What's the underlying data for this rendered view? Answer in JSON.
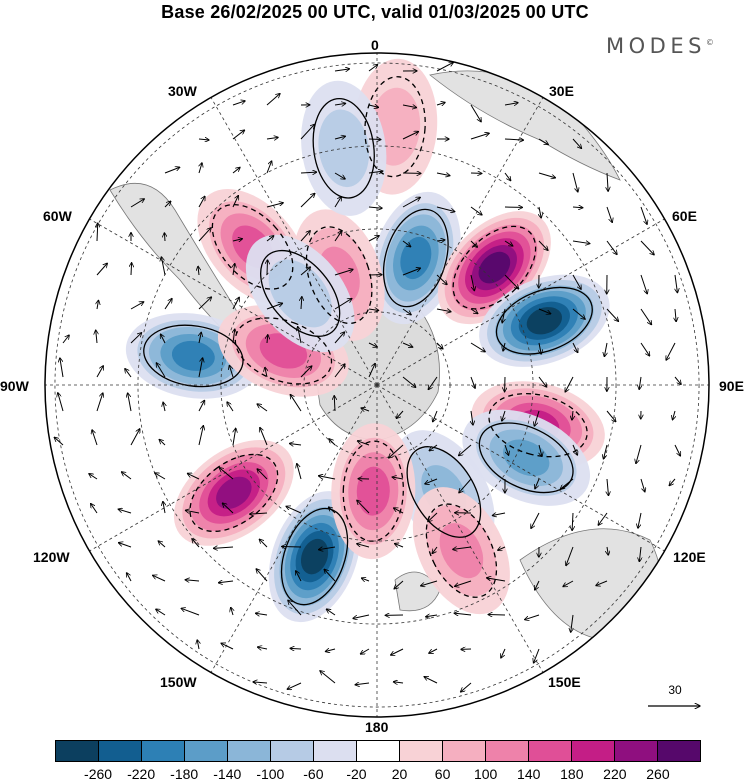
{
  "title": "Base 26/02/2025 00 UTC, valid 01/03/2025 00 UTC",
  "brand": "MODES",
  "brand_mark": "©",
  "map": {
    "projection": "south-polar-stereographic",
    "longitude_labels": {
      "lon_0": "0",
      "lon_30e": "30E",
      "lon_60e": "60E",
      "lon_90e": "90E",
      "lon_120e": "120E",
      "lon_150e": "150E",
      "lon_180": "180",
      "lon_150w": "150W",
      "lon_120w": "120W",
      "lon_90w": "90W",
      "lon_60w": "60W",
      "lon_30w": "30W"
    },
    "wind_reference_vector": "30",
    "anomaly_centers": [
      {
        "sign": "negative",
        "bearing_deg": 17,
        "r": 0.4,
        "peak": -200
      },
      {
        "sign": "positive",
        "bearing_deg": 45,
        "r": 0.5,
        "peak": 260
      },
      {
        "sign": "negative",
        "bearing_deg": 69,
        "r": 0.54,
        "peak": -260
      },
      {
        "sign": "positive",
        "bearing_deg": 104,
        "r": 0.5,
        "peak": 200
      },
      {
        "sign": "negative",
        "bearing_deg": 148,
        "r": 0.38,
        "peak": -120
      },
      {
        "sign": "negative",
        "bearing_deg": 116,
        "r": 0.5,
        "peak": -140
      },
      {
        "sign": "positive",
        "bearing_deg": 153,
        "r": 0.56,
        "peak": 120
      },
      {
        "sign": "negative",
        "bearing_deg": 200,
        "r": 0.55,
        "peak": -260
      },
      {
        "sign": "positive",
        "bearing_deg": 233,
        "r": 0.54,
        "peak": 240
      },
      {
        "sign": "negative",
        "bearing_deg": 279,
        "r": 0.56,
        "peak": -200
      },
      {
        "sign": "positive",
        "bearing_deg": 290,
        "r": 0.3,
        "peak": 140
      },
      {
        "sign": "positive",
        "bearing_deg": 318,
        "r": 0.56,
        "peak": 160
      },
      {
        "sign": "positive",
        "bearing_deg": 341,
        "r": 0.35,
        "peak": 120
      },
      {
        "sign": "positive",
        "bearing_deg": 182,
        "r": 0.32,
        "peak": 140
      },
      {
        "sign": "negative",
        "bearing_deg": 320,
        "r": 0.36,
        "peak": -80
      },
      {
        "sign": "positive",
        "bearing_deg": 4,
        "r": 0.78,
        "peak": 60
      },
      {
        "sign": "negative",
        "bearing_deg": 352,
        "r": 0.72,
        "peak": -60
      }
    ]
  },
  "colorbar": {
    "labels": [
      "-260",
      "-220",
      "-180",
      "-140",
      "-100",
      "-60",
      "-20",
      "20",
      "60",
      "100",
      "140",
      "180",
      "220",
      "260"
    ],
    "colors": [
      "#0c3f5f",
      "#125e90",
      "#2d80b5",
      "#5c9dc8",
      "#8bb6d8",
      "#b6cbe5",
      "#dcdff0",
      "#ffffff",
      "#f8d2d6",
      "#f5afc0",
      "#ee82aa",
      "#e04f97",
      "#c41e86",
      "#8f0f7f",
      "#56086b"
    ]
  }
}
